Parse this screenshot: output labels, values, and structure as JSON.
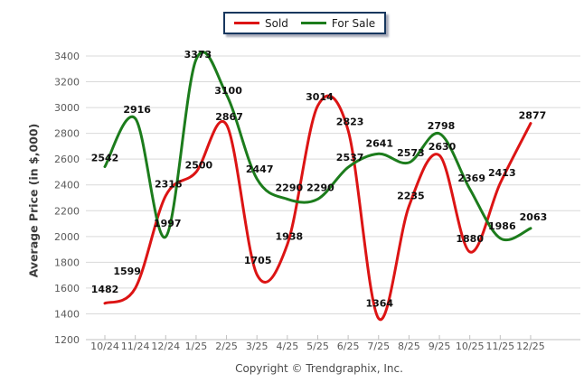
{
  "legend": {
    "items": [
      {
        "label": "Sold",
        "color": "#dc1414"
      },
      {
        "label": "For Sale",
        "color": "#1c7c1c"
      }
    ]
  },
  "copyright": "Copyright © Trendgraphix, Inc.",
  "chart_data": {
    "type": "line",
    "title": "",
    "xlabel": "",
    "ylabel": "Average Price (in $,000)",
    "categories": [
      "10/24",
      "11/24",
      "12/24",
      "1/25",
      "2/25",
      "3/25",
      "4/25",
      "5/25",
      "6/25",
      "7/25",
      "8/25",
      "9/25",
      "10/25",
      "11/25",
      "12/25"
    ],
    "series": [
      {
        "name": "Sold",
        "color": "#dc1414",
        "values": [
          1482,
          1599,
          2316,
          2500,
          2867,
          1705,
          1938,
          3014,
          2823,
          1364,
          2235,
          2630,
          1880,
          2413,
          2877
        ]
      },
      {
        "name": "For Sale",
        "color": "#1c7c1c",
        "values": [
          2542,
          2916,
          1997,
          3373,
          3100,
          2447,
          2290,
          2290,
          2537,
          2641,
          2573,
          2798,
          2369,
          1986,
          2063
        ]
      }
    ],
    "ylim": [
      1200,
      3400
    ],
    "ytick_step": 200,
    "grid": true,
    "data_labels": true,
    "line_style": "smooth",
    "legend_position": "top-center"
  }
}
